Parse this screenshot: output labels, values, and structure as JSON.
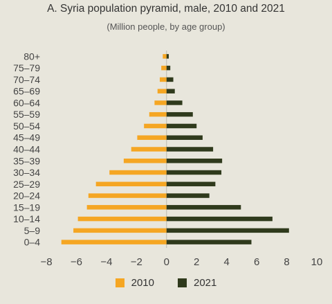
{
  "chart_data": {
    "type": "bar",
    "orientation": "horizontal",
    "title": "A. Syria population pyramid, male, 2010 and 2021",
    "subtitle": "(Million people, by age group)",
    "xlabel": "",
    "ylabel": "",
    "categories": [
      "80+",
      "75–79",
      "70–74",
      "65–69",
      "60–64",
      "55–59",
      "50–54",
      "45–49",
      "40–44",
      "35–39",
      "30–34",
      "25–29",
      "20–24",
      "15–19",
      "10–14",
      "5–9",
      "0–4"
    ],
    "xlim": [
      -8,
      10
    ],
    "xticks": [
      -8,
      -6,
      -4,
      -2,
      0,
      2,
      4,
      6,
      8,
      10
    ],
    "xtick_labels": [
      "−8",
      "−6",
      "−4",
      "−2",
      "0",
      "2",
      "4",
      "6",
      "8",
      "10"
    ],
    "grid": false,
    "legend_position": "bottom",
    "series": [
      {
        "name": "2010",
        "color": "#f5a623",
        "values": [
          -0.25,
          -0.35,
          -0.45,
          -0.6,
          -0.8,
          -1.15,
          -1.5,
          -1.95,
          -2.35,
          -2.85,
          -3.8,
          -4.7,
          -5.2,
          -5.3,
          -5.9,
          -6.2,
          -7.0
        ]
      },
      {
        "name": "2021",
        "color": "#2f3a1c",
        "values": [
          0.15,
          0.25,
          0.45,
          0.55,
          1.05,
          1.75,
          2.0,
          2.4,
          3.1,
          3.7,
          3.65,
          3.25,
          2.85,
          4.95,
          7.05,
          8.15,
          5.65
        ]
      }
    ]
  }
}
